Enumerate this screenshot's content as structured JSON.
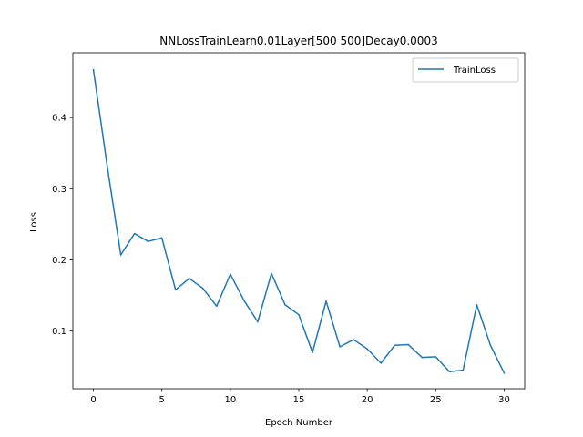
{
  "chart_data": {
    "type": "line",
    "title": "NNLossTrainLearn0.01Layer[500 500]Decay0.0003",
    "xlabel": "Epoch Number",
    "ylabel": "Loss",
    "xlim": [
      -1.5,
      31.5
    ],
    "ylim": [
      0.019,
      0.491
    ],
    "xticks": [
      0,
      5,
      10,
      15,
      20,
      25,
      30
    ],
    "xtick_labels": [
      "0",
      "5",
      "10",
      "15",
      "20",
      "25",
      "30"
    ],
    "yticks": [
      0.1,
      0.2,
      0.3,
      0.4
    ],
    "ytick_labels": [
      "0.1",
      "0.2",
      "0.3",
      "0.4"
    ],
    "grid": false,
    "legend_position": "top-right",
    "series": [
      {
        "name": "TrainLoss",
        "color": "#1f77b4",
        "x": [
          0,
          1,
          2,
          3,
          4,
          5,
          6,
          7,
          8,
          9,
          10,
          11,
          12,
          13,
          14,
          15,
          16,
          17,
          18,
          19,
          20,
          21,
          22,
          23,
          24,
          25,
          26,
          27,
          28,
          29,
          30
        ],
        "y": [
          0.467,
          0.333,
          0.207,
          0.237,
          0.226,
          0.231,
          0.158,
          0.174,
          0.16,
          0.135,
          0.18,
          0.143,
          0.113,
          0.181,
          0.137,
          0.123,
          0.07,
          0.142,
          0.078,
          0.088,
          0.075,
          0.055,
          0.08,
          0.081,
          0.063,
          0.064,
          0.043,
          0.045,
          0.137,
          0.08,
          0.041
        ]
      }
    ]
  }
}
